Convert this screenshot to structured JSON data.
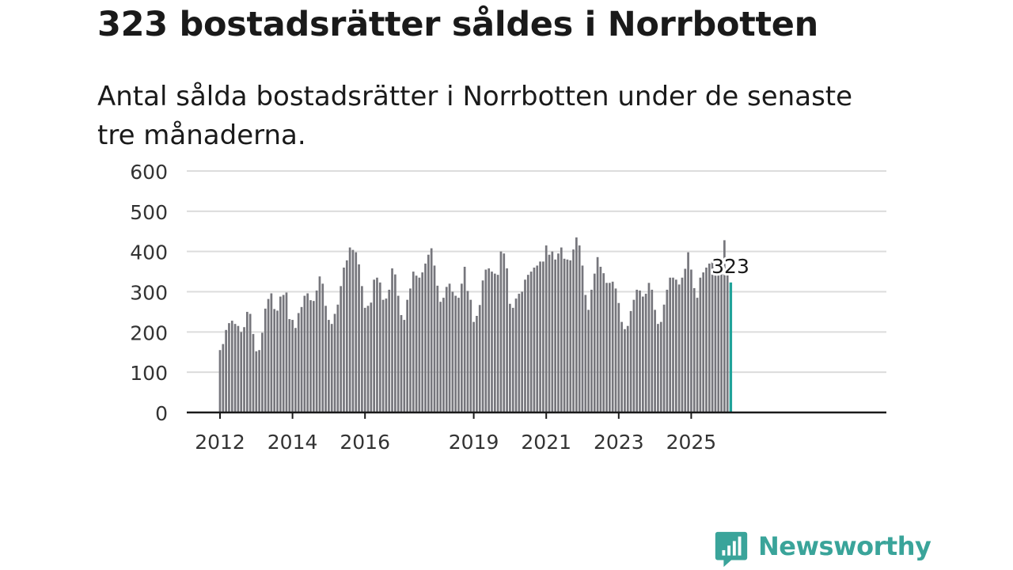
{
  "header": {
    "title": "323 bostadsrätter såldes i Norrbotten",
    "subtitle": "Antal sålda bostadsrätter i Norrbotten under de senaste tre månaderna."
  },
  "brand": {
    "name": "Newsworthy",
    "color": "#3aa49a",
    "logo_icon": "newsworthy-logo-icon"
  },
  "chart_data": {
    "type": "bar",
    "title": "323 bostadsrätter såldes i Norrbotten",
    "subtitle": "Antal sålda bostadsrätter i Norrbotten under de senaste tre månaderna.",
    "xlabel": "",
    "ylabel": "",
    "ylim": [
      0,
      600
    ],
    "yticks": [
      0,
      100,
      200,
      300,
      400,
      500,
      600
    ],
    "grid": true,
    "x_start": {
      "year": 2012,
      "month": 1
    },
    "xticks": [
      {
        "label": "2012",
        "year": 2012
      },
      {
        "label": "2014",
        "year": 2014
      },
      {
        "label": "2016",
        "year": 2016
      },
      {
        "label": "2019",
        "year": 2019
      },
      {
        "label": "2021",
        "year": 2021
      },
      {
        "label": "2023",
        "year": 2023
      },
      {
        "label": "2025",
        "year": 2025
      }
    ],
    "bar_color": "#76767c",
    "highlight_color": "#20a39a",
    "highlight_label": "323",
    "values": [
      155,
      170,
      205,
      222,
      228,
      220,
      215,
      200,
      212,
      250,
      245,
      195,
      152,
      155,
      198,
      258,
      282,
      296,
      257,
      253,
      288,
      292,
      298,
      232,
      230,
      210,
      247,
      262,
      290,
      296,
      279,
      277,
      303,
      338,
      320,
      265,
      230,
      220,
      245,
      268,
      314,
      360,
      378,
      410,
      404,
      398,
      368,
      314,
      260,
      265,
      273,
      330,
      335,
      323,
      280,
      283,
      305,
      358,
      343,
      290,
      242,
      230,
      280,
      308,
      350,
      340,
      335,
      348,
      370,
      392,
      408,
      365,
      315,
      275,
      285,
      312,
      320,
      300,
      290,
      285,
      320,
      362,
      302,
      280,
      225,
      240,
      267,
      328,
      355,
      358,
      350,
      345,
      342,
      400,
      395,
      358,
      270,
      260,
      283,
      295,
      300,
      330,
      342,
      350,
      360,
      365,
      375,
      375,
      415,
      392,
      400,
      380,
      395,
      410,
      382,
      380,
      378,
      405,
      435,
      415,
      365,
      292,
      255,
      305,
      345,
      386,
      362,
      346,
      322,
      322,
      325,
      308,
      272,
      225,
      207,
      215,
      252,
      280,
      305,
      303,
      288,
      295,
      322,
      305,
      255,
      220,
      225,
      268,
      305,
      335,
      335,
      330,
      318,
      335,
      357,
      398,
      355,
      309,
      285,
      335,
      348,
      360,
      370,
      375,
      348,
      345,
      365,
      428,
      345,
      323
    ]
  }
}
